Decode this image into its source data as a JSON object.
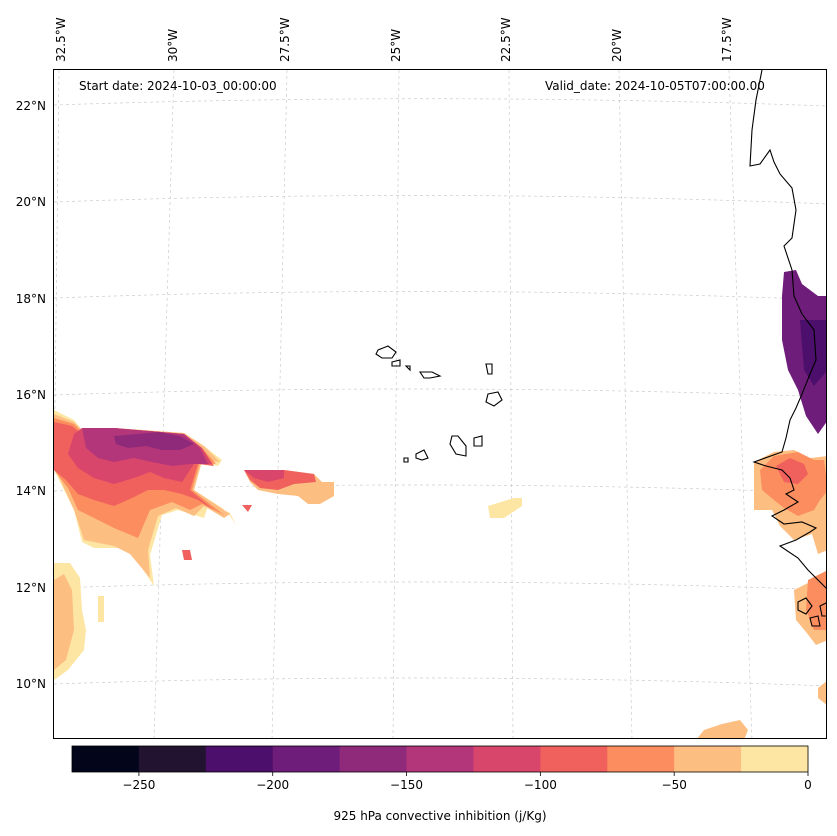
{
  "map": {
    "start_date": "Start date: 2024-10-03_00:00:00",
    "valid_date": "Valid_date: 2024-10-05T07:00:00.00",
    "lon_labels": [
      "32.5°W",
      "30°W",
      "27.5°W",
      "25°W",
      "22.5°W",
      "20°W",
      "17.5°W"
    ],
    "lat_labels": [
      "22°N",
      "20°N",
      "18°N",
      "16°N",
      "14°N",
      "12°N",
      "10°N"
    ],
    "variable": "925 hPa convective inhibition",
    "unit": "j/Kg"
  },
  "colorbar": {
    "label": "925 hPa convective inhibition (j/Kg)",
    "levels": [
      -275,
      -250,
      -225,
      -200,
      -175,
      -150,
      -125,
      -100,
      -75,
      -50,
      -25,
      0
    ],
    "colors": [
      "#03051a",
      "#221331",
      "#4c0f6b",
      "#6f1d7b",
      "#8f2a7b",
      "#b3367a",
      "#d9466b",
      "#f0605d",
      "#fb8d5e",
      "#fdbe82",
      "#fde6a4"
    ],
    "tick_values": [
      -250,
      -200,
      -150,
      -100,
      -50,
      0
    ],
    "tick_labels": [
      "−250",
      "−200",
      "−150",
      "−100",
      "−50",
      "0"
    ]
  },
  "colors": {
    "coastline": "#000000",
    "grid": "#cccccc"
  }
}
